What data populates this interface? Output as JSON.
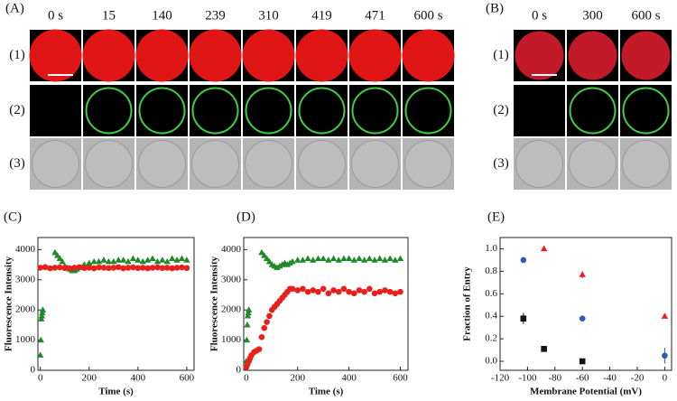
{
  "figure": {
    "A": {
      "label": "(A)",
      "times": [
        "0 s",
        "15",
        "140",
        "239",
        "310",
        "419",
        "471",
        "600 s"
      ],
      "rows": [
        "(1)",
        "(2)",
        "(3)"
      ]
    },
    "B": {
      "label": "(B)",
      "times": [
        "0 s",
        "300",
        "600 s"
      ],
      "rows": [
        "(1)",
        "(2)",
        "(3)"
      ]
    }
  },
  "chart_data": [
    {
      "type": "scatter",
      "label": "(C)",
      "x_label": "Time (s)",
      "y_label": "Fluorescence Intensity",
      "xlim": [
        -10,
        630
      ],
      "xticks": [
        0,
        200,
        400,
        600
      ],
      "ylim": [
        0,
        4400
      ],
      "yticks": [
        0,
        1000,
        2000,
        3000,
        4000
      ],
      "series": [
        {
          "color": "#1f8a2a",
          "marker": "triangle",
          "x": [
            0,
            2,
            4,
            6,
            8,
            10,
            60,
            70,
            80,
            90,
            100,
            110,
            120,
            130,
            140,
            150,
            160,
            170,
            180,
            200,
            220,
            240,
            260,
            280,
            300,
            320,
            340,
            360,
            380,
            400,
            420,
            440,
            460,
            480,
            500,
            520,
            540,
            560,
            580,
            600
          ],
          "values": [
            500,
            1000,
            1700,
            1800,
            1900,
            2000,
            3900,
            3800,
            3700,
            3600,
            3450,
            3400,
            3350,
            3300,
            3300,
            3350,
            3400,
            3400,
            3500,
            3550,
            3600,
            3600,
            3650,
            3600,
            3600,
            3650,
            3650,
            3600,
            3700,
            3650,
            3600,
            3650,
            3700,
            3600,
            3650,
            3600,
            3700,
            3650,
            3700,
            3650
          ]
        },
        {
          "color": "#e8201c",
          "marker": "circle",
          "x": [
            0,
            20,
            40,
            60,
            80,
            100,
            120,
            140,
            160,
            180,
            200,
            220,
            240,
            260,
            280,
            300,
            320,
            340,
            360,
            380,
            400,
            420,
            440,
            460,
            480,
            500,
            520,
            540,
            560,
            580,
            600
          ],
          "values": [
            3400,
            3420,
            3380,
            3400,
            3410,
            3390,
            3380,
            3400,
            3420,
            3390,
            3400,
            3380,
            3410,
            3400,
            3390,
            3400,
            3420,
            3380,
            3400,
            3410,
            3390,
            3400,
            3380,
            3400,
            3410,
            3390,
            3400,
            3380,
            3400,
            3410,
            3390
          ]
        }
      ]
    },
    {
      "type": "scatter",
      "label": "(D)",
      "x_label": "Time (s)",
      "y_label": "Fluorescence Intensity",
      "xlim": [
        -10,
        630
      ],
      "xticks": [
        0,
        200,
        400,
        600
      ],
      "ylim": [
        0,
        4400
      ],
      "yticks": [
        0,
        1000,
        2000,
        3000,
        4000
      ],
      "series": [
        {
          "color": "#1f8a2a",
          "marker": "triangle",
          "x": [
            0,
            2,
            4,
            6,
            8,
            10,
            60,
            70,
            80,
            90,
            100,
            110,
            120,
            130,
            140,
            150,
            160,
            170,
            180,
            200,
            220,
            240,
            260,
            280,
            300,
            320,
            340,
            360,
            380,
            400,
            420,
            440,
            460,
            480,
            500,
            520,
            540,
            560,
            580,
            600
          ],
          "values": [
            300,
            1000,
            1500,
            1800,
            1900,
            2000,
            3900,
            3800,
            3700,
            3600,
            3500,
            3450,
            3400,
            3450,
            3500,
            3550,
            3500,
            3550,
            3600,
            3650,
            3650,
            3700,
            3650,
            3700,
            3700,
            3650,
            3700,
            3650,
            3700,
            3700,
            3650,
            3700,
            3650,
            3700,
            3650,
            3700,
            3650,
            3700,
            3650,
            3700
          ]
        },
        {
          "color": "#e8201c",
          "marker": "circle",
          "x": [
            0,
            5,
            10,
            15,
            20,
            30,
            40,
            50,
            60,
            70,
            80,
            90,
            100,
            110,
            120,
            130,
            140,
            150,
            160,
            170,
            180,
            200,
            220,
            240,
            260,
            280,
            300,
            320,
            340,
            360,
            380,
            400,
            420,
            440,
            460,
            480,
            500,
            520,
            540,
            560,
            580,
            600
          ],
          "values": [
            100,
            200,
            300,
            400,
            500,
            600,
            650,
            700,
            1100,
            1400,
            1600,
            1800,
            2000,
            2100,
            2200,
            2300,
            2400,
            2500,
            2600,
            2700,
            2700,
            2650,
            2700,
            2600,
            2650,
            2600,
            2700,
            2550,
            2650,
            2600,
            2700,
            2600,
            2550,
            2650,
            2600,
            2700,
            2550,
            2600,
            2650,
            2600,
            2550,
            2600
          ]
        }
      ]
    },
    {
      "type": "scatter",
      "label": "(E)",
      "x_label": "Membrane Potential (mV)",
      "y_label": "Fraction of Entry",
      "xlim": [
        -120,
        5
      ],
      "xticks": [
        -120,
        -100,
        -80,
        -60,
        -40,
        -20,
        0
      ],
      "ylim": [
        -0.08,
        1.1
      ],
      "yticks": [
        {
          "value": 0,
          "label": "0.0"
        },
        0.2,
        0.4,
        0.6,
        0.8,
        {
          "value": 1,
          "label": "1.0"
        }
      ],
      "series": [
        {
          "color": "#2e5cb8",
          "marker": "circle",
          "x": [
            -103,
            -60,
            0
          ],
          "values": [
            0.9,
            0.38,
            0.05
          ],
          "errors": [
            0.02,
            0.01,
            0.07
          ]
        },
        {
          "color": "#e8201c",
          "marker": "triangle",
          "x": [
            -88,
            -60,
            0
          ],
          "values": [
            1.0,
            0.77,
            0.4
          ],
          "errors": [
            0.01,
            0.03,
            0.01
          ]
        },
        {
          "color": "#111111",
          "marker": "square",
          "x": [
            -103,
            -88,
            -60
          ],
          "values": [
            0.38,
            0.11,
            0.0
          ],
          "errors": [
            0.05,
            0.01,
            0.01
          ]
        }
      ]
    }
  ]
}
